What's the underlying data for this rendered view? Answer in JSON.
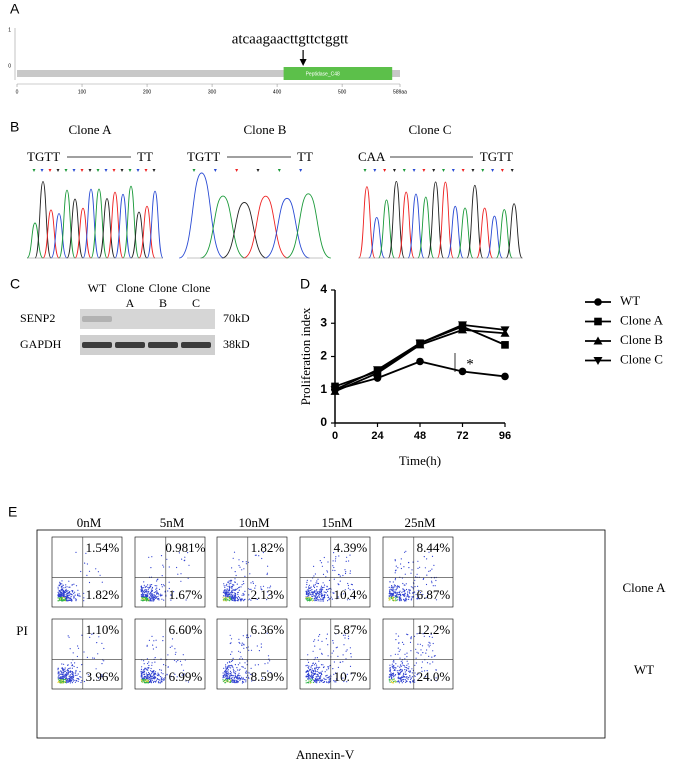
{
  "panel_labels": [
    "A",
    "B",
    "C",
    "D",
    "E"
  ],
  "panel_a": {
    "sequence": "atcaagaacttgttctggtt",
    "y_labels": [
      "1",
      "0"
    ],
    "xlim": [
      0,
      589
    ],
    "xticks": [
      0,
      100,
      200,
      300,
      400,
      500,
      {
        "value": 589,
        "label": "589aa"
      }
    ],
    "domain": {
      "label": "Peptidase_C48",
      "start": 410,
      "end": 577
    },
    "site": 440
  },
  "panel_b": {
    "clones": [
      {
        "title": "Clone A",
        "left": "TGTT",
        "right": "TT"
      },
      {
        "title": "Clone B",
        "left": "TGTT",
        "right": "TT"
      },
      {
        "title": "Clone C",
        "left": "CAA",
        "right": "TGTT"
      }
    ]
  },
  "panel_c": {
    "lanes": [
      [
        "WT"
      ],
      [
        "Clone",
        "A"
      ],
      [
        "Clone",
        "B"
      ],
      [
        "Clone",
        "C"
      ]
    ],
    "rows": [
      {
        "name": "SENP2",
        "size": "70kD"
      },
      {
        "name": "GAPDH",
        "size": "38kD"
      }
    ]
  },
  "chart_data": {
    "type": "line",
    "x_label": "Time(h)",
    "y_label": "Proliferation index",
    "annotation": "*",
    "x": [
      0,
      24,
      48,
      72,
      96
    ],
    "xlim": [
      0,
      96
    ],
    "xticks": [
      0,
      24,
      48,
      72,
      96
    ],
    "ylim": [
      0,
      4
    ],
    "yticks": [
      0,
      1,
      2,
      3,
      4
    ],
    "series": [
      {
        "name": "WT",
        "color": "#000000",
        "marker": "circle",
        "values": [
          1.0,
          1.35,
          1.85,
          1.55,
          1.4
        ]
      },
      {
        "name": "Clone A",
        "color": "#000000",
        "marker": "square",
        "values": [
          1.1,
          1.55,
          2.4,
          2.9,
          2.35
        ]
      },
      {
        "name": "Clone B",
        "color": "#000000",
        "marker": "triangle-up",
        "values": [
          0.95,
          1.5,
          2.35,
          2.8,
          2.7
        ]
      },
      {
        "name": "Clone C",
        "color": "#000000",
        "marker": "triangle-down",
        "values": [
          1.0,
          1.6,
          2.4,
          2.95,
          2.8
        ]
      }
    ]
  },
  "panel_e": {
    "columns": [
      "0nM",
      "5nM",
      "10nM",
      "15nM",
      "25nM"
    ],
    "rows": [
      {
        "name": "Clone A",
        "q2": [
          "1.54%",
          "0.981%",
          "1.82%",
          "4.39%",
          "8.44%"
        ],
        "q3": [
          "1.82%",
          "1.67%",
          "2.13%",
          "10.4%",
          "6.87%"
        ]
      },
      {
        "name": "WT",
        "q2": [
          "1.10%",
          "6.60%",
          "6.36%",
          "5.87%",
          "12.2%"
        ],
        "q3": [
          "3.96%",
          "6.99%",
          "8.59%",
          "10.7%",
          "24.0%"
        ]
      }
    ],
    "y_label": "PI",
    "x_label": "Annexin-V"
  }
}
